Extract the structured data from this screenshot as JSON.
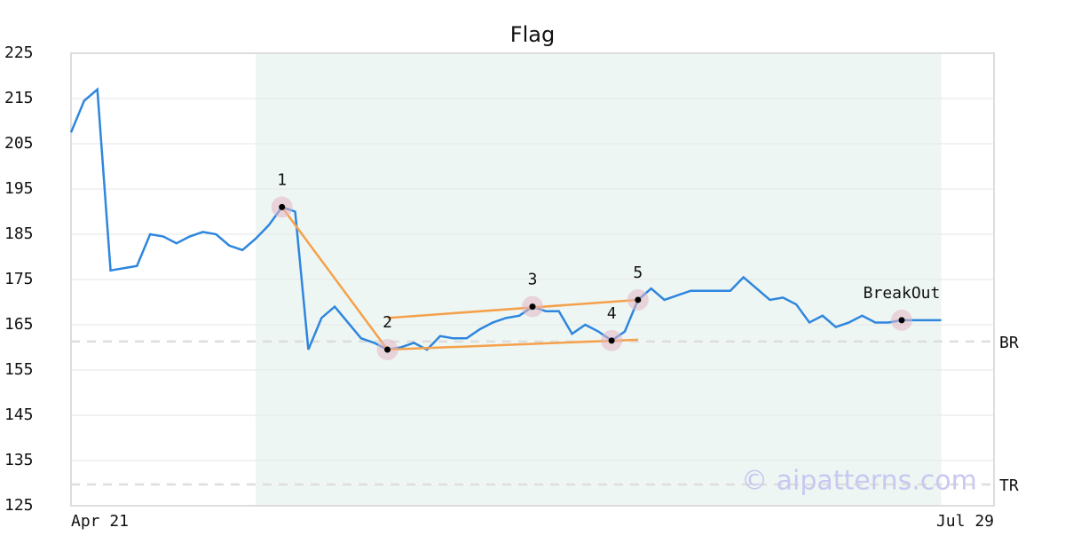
{
  "chart_data": {
    "type": "line",
    "title": "Flag",
    "categories": [
      "Apr 21",
      null,
      null,
      null,
      null,
      null,
      null,
      null,
      null,
      null,
      null,
      null,
      null,
      null,
      null,
      null,
      null,
      null,
      null,
      null,
      null,
      null,
      null,
      null,
      null,
      null,
      null,
      null,
      null,
      null,
      null,
      null,
      null,
      null,
      null,
      null,
      null,
      null,
      null,
      null,
      null,
      null,
      null,
      null,
      null,
      null,
      null,
      null,
      null,
      null,
      null,
      null,
      null,
      null,
      null,
      null,
      null,
      null,
      null,
      null,
      null,
      null,
      null,
      null,
      null,
      null,
      null,
      null,
      null,
      null,
      "Jul 29"
    ],
    "series": [
      {
        "color": "#2e86de",
        "values": [
          207.5,
          214.5,
          217,
          177,
          177.5,
          178,
          185,
          184.5,
          183,
          184.5,
          185.5,
          185,
          182.5,
          181.5,
          184,
          187,
          191,
          190,
          159.5,
          166.5,
          169,
          165.5,
          162,
          161,
          159.5,
          160,
          161,
          159.5,
          162.5,
          162,
          162,
          164,
          165.5,
          166.5,
          167,
          169,
          168,
          168,
          163,
          165,
          163.5,
          161.5,
          163.5,
          170.5,
          173,
          170.5,
          171.5,
          172.5,
          172.5,
          172.5,
          172.5,
          175.5,
          173,
          170.5,
          171,
          169.5,
          165.5,
          167,
          164.5,
          165.5,
          167,
          165.5,
          165.5,
          166,
          166,
          166,
          166,
          null,
          null,
          null,
          null
        ]
      }
    ],
    "ylim": [
      125,
      225
    ],
    "yticks": [
      125,
      135,
      145,
      155,
      165,
      175,
      185,
      195,
      205,
      215,
      225
    ],
    "grid": true,
    "highlight_range": [
      14,
      66
    ],
    "highlight_color": "#eef6f3",
    "points": [
      {
        "label": "1",
        "x": 16,
        "y": 191
      },
      {
        "label": "2",
        "x": 24,
        "y": 159.5
      },
      {
        "label": "3",
        "x": 35,
        "y": 169
      },
      {
        "label": "4",
        "x": 41,
        "y": 161.5
      },
      {
        "label": "5",
        "x": 43,
        "y": 170.5
      },
      {
        "label": "BreakOut",
        "x": 63,
        "y": 166
      }
    ],
    "trend_lines": [
      {
        "x": [
          16,
          24
        ],
        "y": [
          191,
          159.5
        ]
      },
      {
        "x": [
          24,
          43
        ],
        "y": [
          159.5,
          161.7
        ]
      },
      {
        "x": [
          24,
          43
        ],
        "y": [
          166.5,
          170.5
        ]
      }
    ],
    "trend_color": "#f5a04a",
    "levels": [
      {
        "label": "BR",
        "value": 161.3
      },
      {
        "label": "TR",
        "value": 129.7
      }
    ],
    "watermark": "© aipatterns.com"
  }
}
